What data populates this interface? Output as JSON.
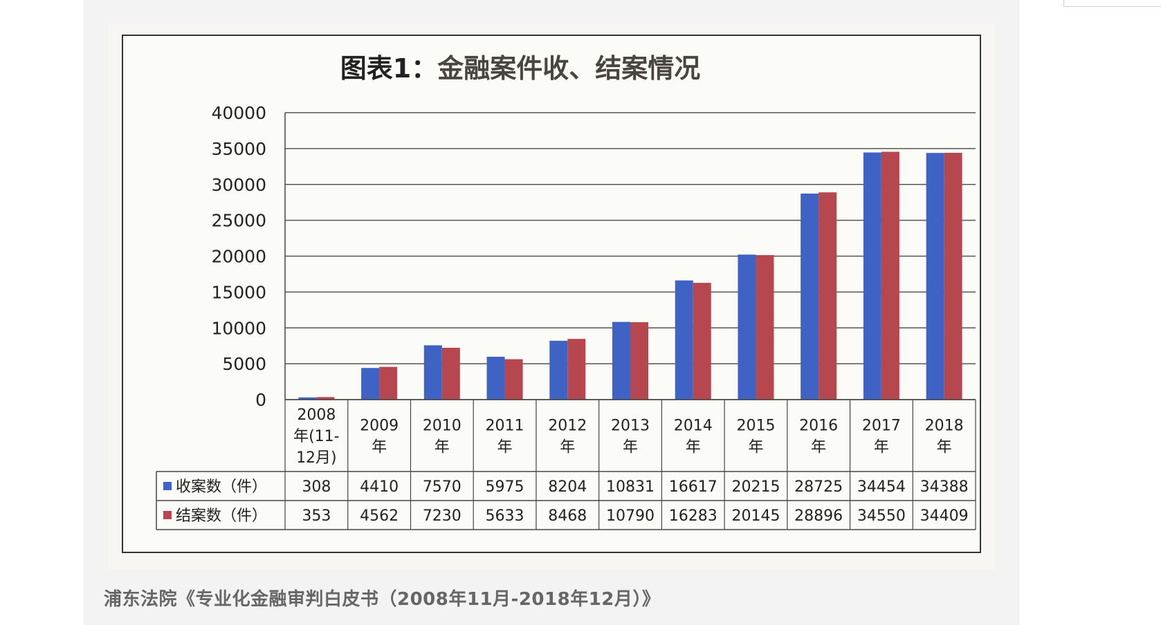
{
  "caption": "浦东法院《专业化金融审判白皮书（2008年11月-2018年12月）》",
  "chart_data": {
    "type": "bar",
    "title_prefix": "图表1：",
    "title_main": "金融案件收、结案情况",
    "categories": [
      [
        "2008",
        "年(11-",
        "12月)"
      ],
      [
        "2009",
        "年"
      ],
      [
        "2010",
        "年"
      ],
      [
        "2011",
        "年"
      ],
      [
        "2012",
        "年"
      ],
      [
        "2013",
        "年"
      ],
      [
        "2014",
        "年"
      ],
      [
        "2015",
        "年"
      ],
      [
        "2016",
        "年"
      ],
      [
        "2017",
        "年"
      ],
      [
        "2018",
        "年"
      ]
    ],
    "series": [
      {
        "name": "收案数（件）",
        "color": "#3f63c4",
        "values": [
          308,
          4410,
          7570,
          5975,
          8204,
          10831,
          16617,
          20215,
          28725,
          34454,
          34388
        ]
      },
      {
        "name": "结案数（件）",
        "color": "#b6474f",
        "values": [
          353,
          4562,
          7230,
          5633,
          8468,
          10790,
          16283,
          20145,
          28896,
          34550,
          34409
        ]
      }
    ],
    "y_ticks": [
      "0",
      "5000",
      "10000",
      "15000",
      "20000",
      "25000",
      "30000",
      "35000",
      "40000"
    ],
    "ylim": [
      0,
      40000
    ],
    "grid": true,
    "legend": "data-table"
  }
}
